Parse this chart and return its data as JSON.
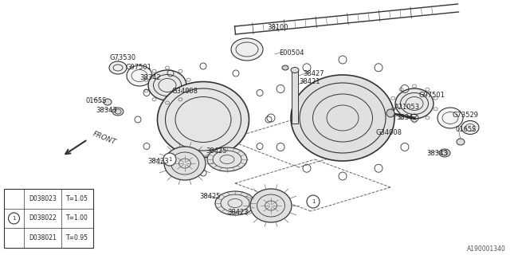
{
  "bg_color": "#ffffff",
  "fig_width": 6.4,
  "fig_height": 3.2,
  "watermark": "A190001340",
  "legend_rows": [
    {
      "part": "D038021",
      "thickness": "T=0.95",
      "circled": false
    },
    {
      "part": "D038022",
      "thickness": "T=1.00",
      "circled": true
    },
    {
      "part": "D038023",
      "thickness": "T=1.05",
      "circled": false
    }
  ]
}
